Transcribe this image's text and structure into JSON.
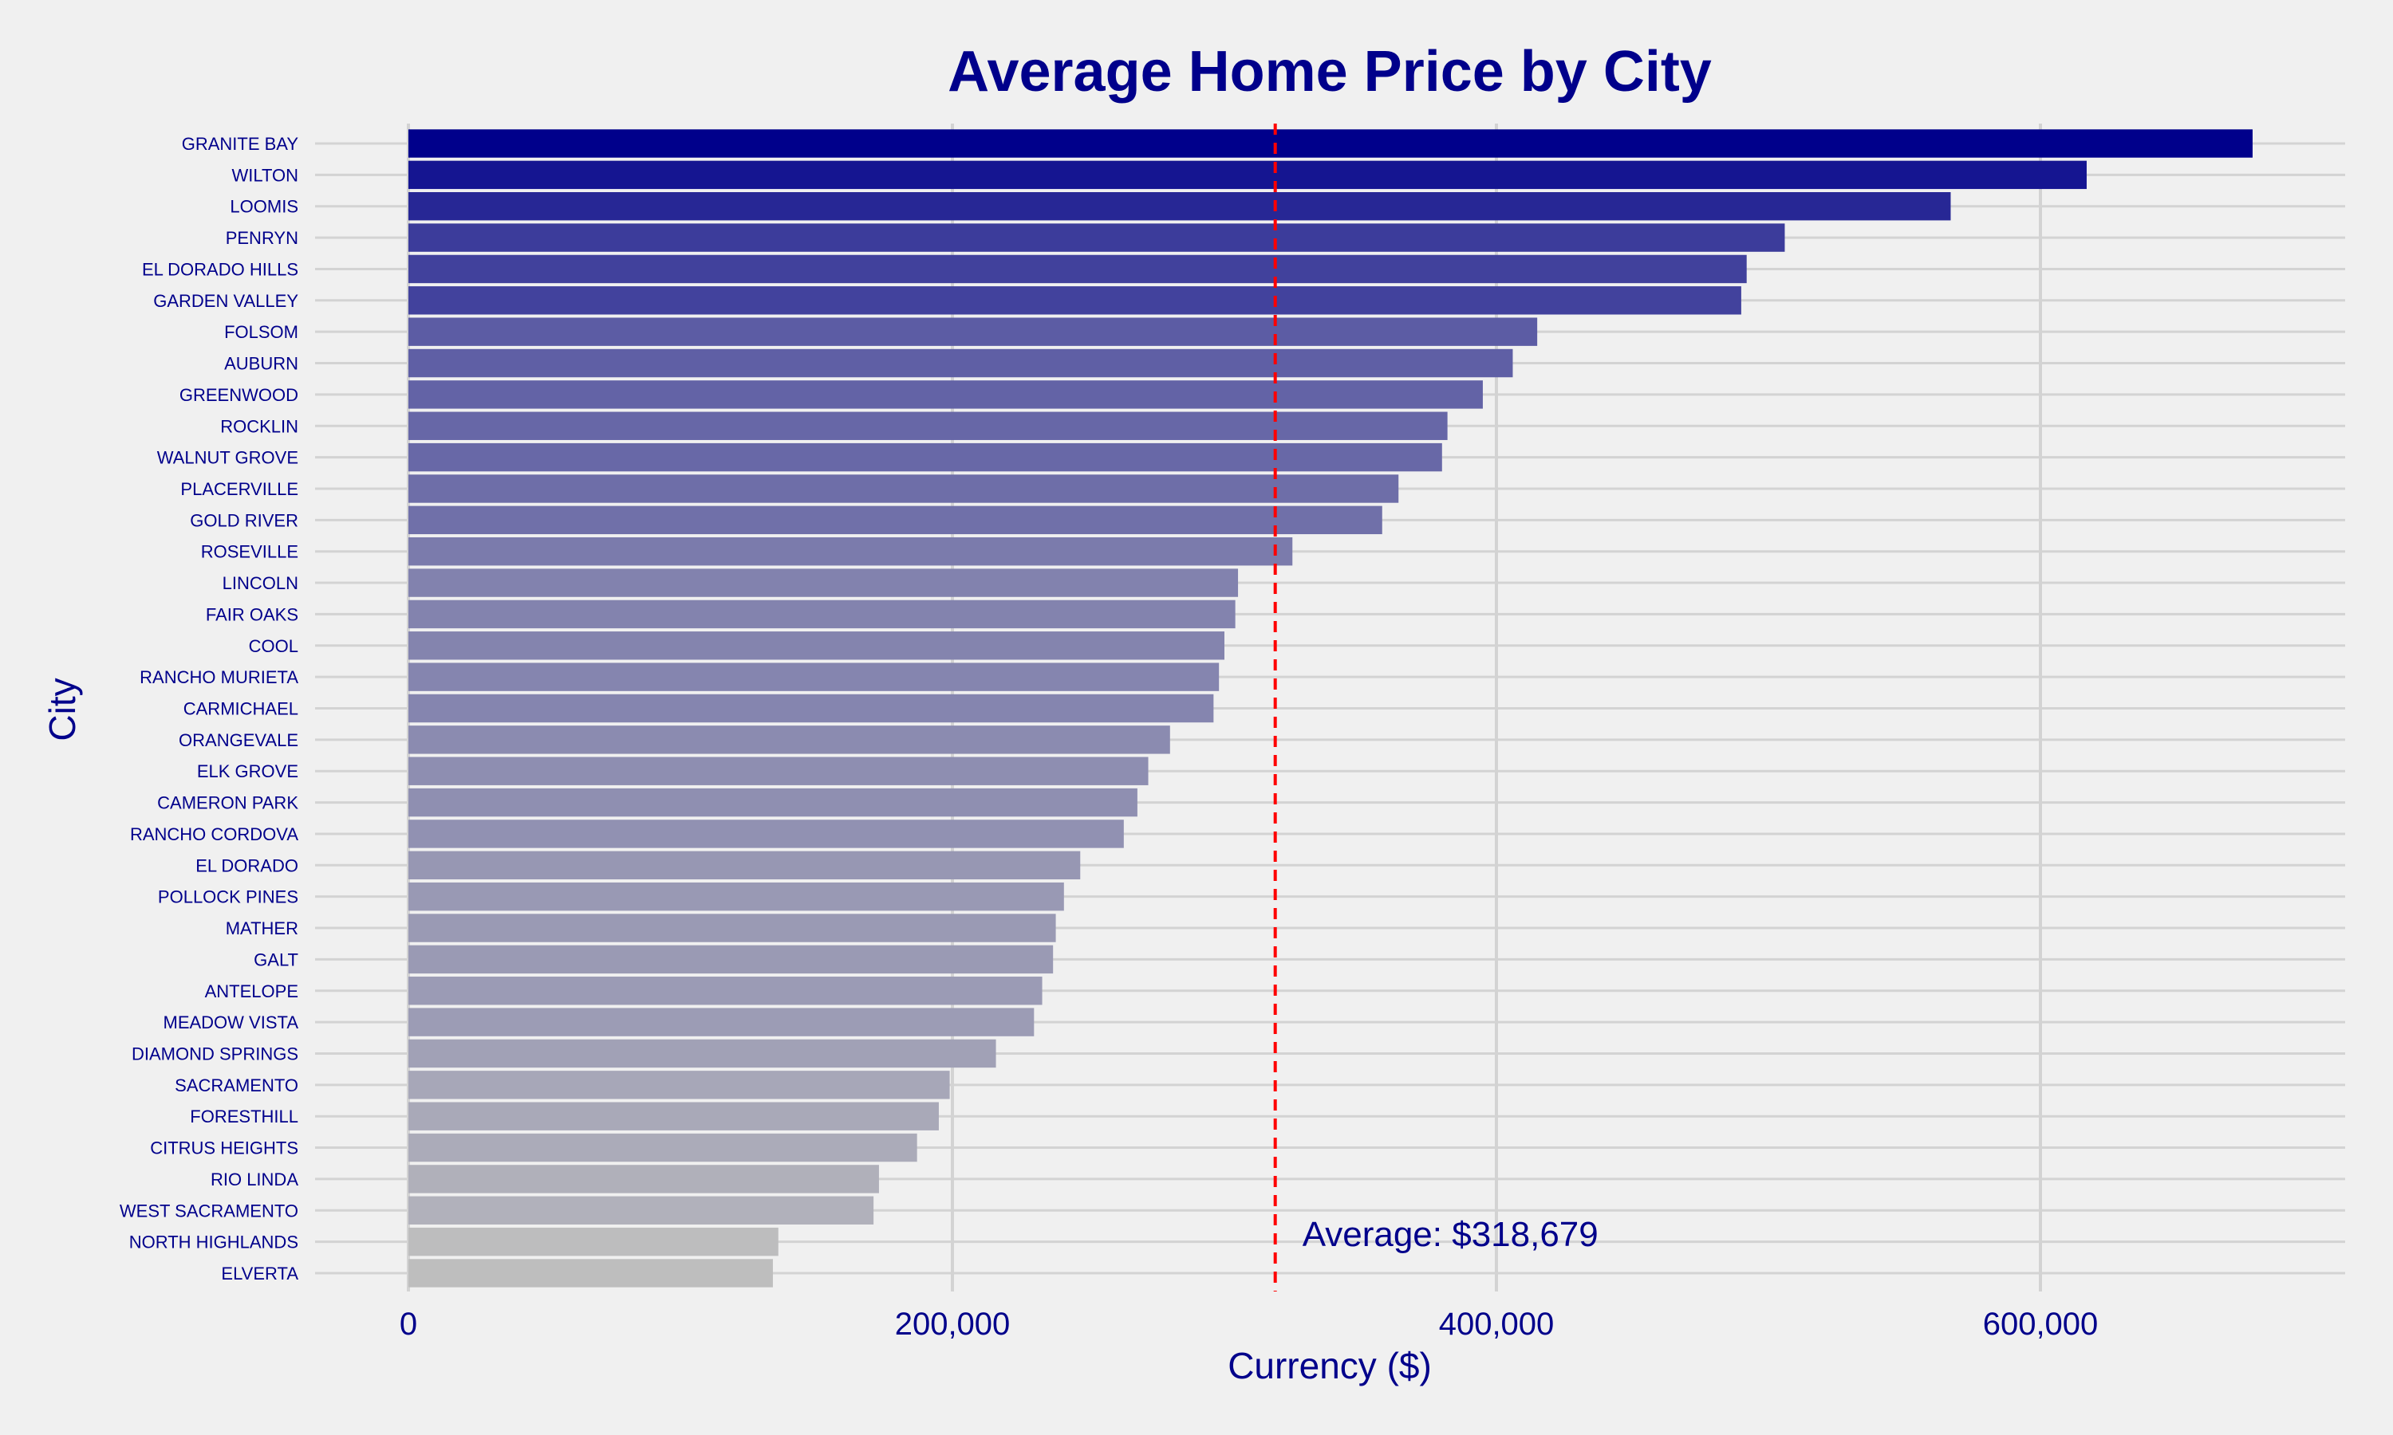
{
  "chart_data": {
    "type": "bar",
    "orientation": "horizontal",
    "title": "Average Home Price by City",
    "xlabel": "Currency ($)",
    "ylabel": "City",
    "xlim": [
      0,
      712000
    ],
    "xticks": [
      0,
      200000,
      400000,
      600000
    ],
    "xtick_labels": [
      "0",
      "200,000",
      "400,000",
      "600,000"
    ],
    "grid": true,
    "legend": "none",
    "colors": {
      "high": "#00008b",
      "low": "#bebebe",
      "average_line": "#ff0000",
      "background": "#f0f0f0",
      "grid": "#d3d3d3"
    },
    "categories": [
      "GRANITE BAY",
      "WILTON",
      "LOOMIS",
      "PENRYN",
      "EL DORADO HILLS",
      "GARDEN VALLEY",
      "FOLSOM",
      "AUBURN",
      "GREENWOOD",
      "ROCKLIN",
      "WALNUT GROVE",
      "PLACERVILLE",
      "GOLD RIVER",
      "ROSEVILLE",
      "LINCOLN",
      "FAIR OAKS",
      "COOL",
      "RANCHO MURIETA",
      "CARMICHAEL",
      "ORANGEVALE",
      "ELK GROVE",
      "CAMERON PARK",
      "RANCHO CORDOVA",
      "EL DORADO",
      "POLLOCK PINES",
      "MATHER",
      "GALT",
      "ANTELOPE",
      "MEADOW VISTA",
      "DIAMOND SPRINGS",
      "SACRAMENTO",
      "FORESTHILL",
      "CITRUS HEIGHTS",
      "RIO LINDA",
      "WEST SACRAMENTO",
      "NORTH HIGHLANDS",
      "ELVERTA"
    ],
    "values": [
      678000,
      617000,
      567000,
      506000,
      492000,
      490000,
      415000,
      406000,
      395000,
      382000,
      380000,
      364000,
      358000,
      325000,
      305000,
      304000,
      300000,
      298000,
      296000,
      280000,
      272000,
      268000,
      263000,
      247000,
      241000,
      238000,
      237000,
      233000,
      230000,
      216000,
      199000,
      195000,
      187000,
      173000,
      171000,
      136000,
      134000
    ],
    "average": {
      "value": 318679,
      "label": "Average: $318,679"
    }
  }
}
